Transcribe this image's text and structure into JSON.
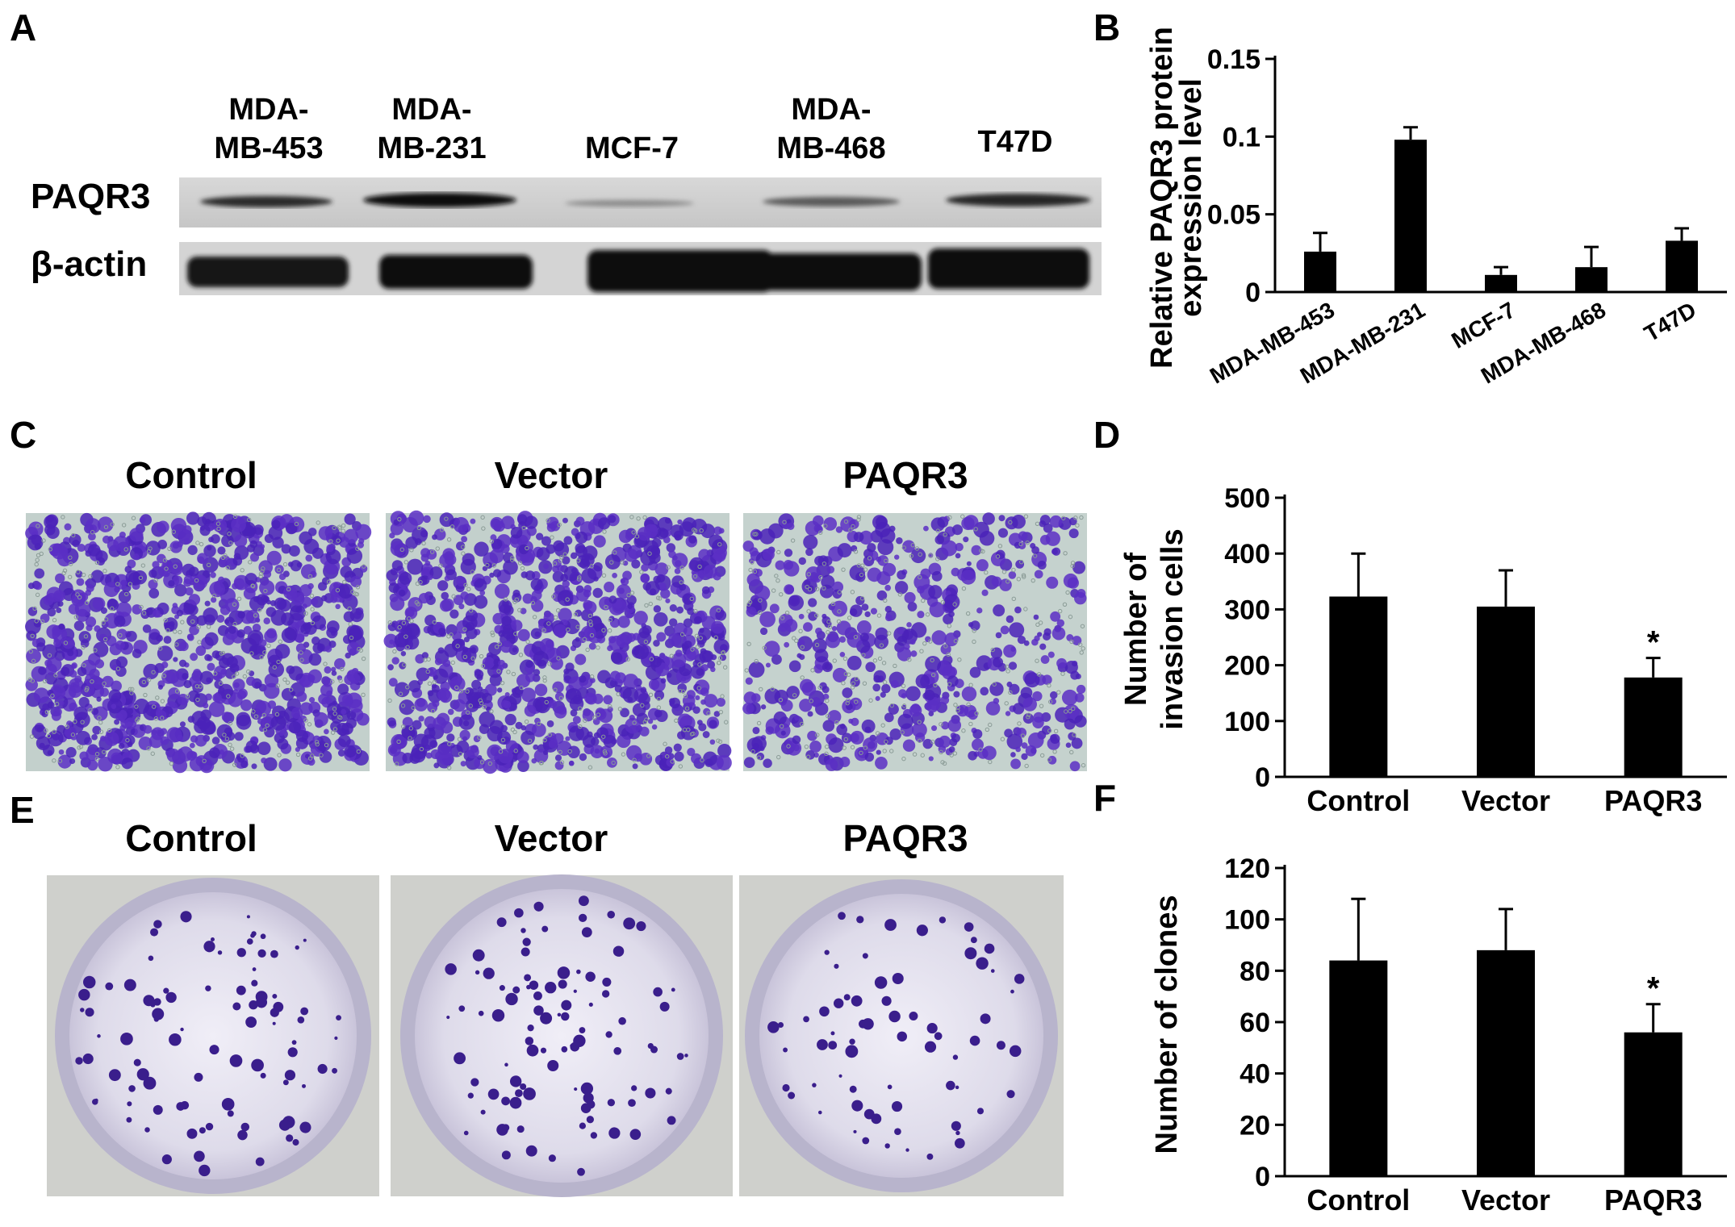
{
  "panel_letters": [
    "A",
    "B",
    "C",
    "D",
    "E",
    "F"
  ],
  "panel_a": {
    "lane_labels": [
      [
        "MDA-",
        "MB-453"
      ],
      [
        "MDA-",
        "MB-231"
      ],
      [
        "MCF-7"
      ],
      [
        "MDA-",
        "MB-468"
      ],
      [
        "T47D"
      ]
    ],
    "row_labels": [
      "PAQR3",
      "β-actin"
    ]
  },
  "panel_c": {
    "titles": [
      "Control",
      "Vector",
      "PAQR3"
    ]
  },
  "panel_e": {
    "titles": [
      "Control",
      "Vector",
      "PAQR3"
    ]
  },
  "chart_data": [
    {
      "panel": "B",
      "type": "bar",
      "categories": [
        "MDA-MB-453",
        "MDA-MB-231",
        "MCF-7",
        "MDA-MB-468",
        "T47D"
      ],
      "values": [
        0.026,
        0.098,
        0.011,
        0.016,
        0.033
      ],
      "errors": [
        0.012,
        0.008,
        0.005,
        0.013,
        0.008
      ],
      "ylabel": [
        "Relative PAQR3 protein",
        "expression level"
      ],
      "ylim": [
        0,
        0.15
      ],
      "yticks": [
        0,
        0.05,
        0.1,
        0.15
      ],
      "ytick_labels": [
        "0",
        "0.05",
        "0.1",
        "0.15"
      ],
      "significance": [
        "",
        "",
        "",
        "",
        ""
      ]
    },
    {
      "panel": "D",
      "type": "bar",
      "categories": [
        "Control",
        "Vector",
        "PAQR3"
      ],
      "values": [
        323,
        305,
        178
      ],
      "errors": [
        77,
        65,
        35
      ],
      "ylabel": [
        "Number of",
        "invasion cells"
      ],
      "ylim": [
        0,
        500
      ],
      "yticks": [
        0,
        100,
        200,
        300,
        400,
        500
      ],
      "ytick_labels": [
        "0",
        "100",
        "200",
        "300",
        "400",
        "500"
      ],
      "significance": [
        "",
        "",
        "*"
      ]
    },
    {
      "panel": "F",
      "type": "bar",
      "categories": [
        "Control",
        "Vector",
        "PAQR3"
      ],
      "values": [
        84,
        88,
        56
      ],
      "errors": [
        24,
        16,
        11
      ],
      "ylabel": [
        "Number of clones"
      ],
      "ylim": [
        0,
        120
      ],
      "yticks": [
        0,
        20,
        40,
        60,
        80,
        100,
        120
      ],
      "ytick_labels": [
        "0",
        "20",
        "40",
        "60",
        "80",
        "100",
        "120"
      ],
      "significance": [
        "",
        "",
        "*"
      ]
    }
  ]
}
